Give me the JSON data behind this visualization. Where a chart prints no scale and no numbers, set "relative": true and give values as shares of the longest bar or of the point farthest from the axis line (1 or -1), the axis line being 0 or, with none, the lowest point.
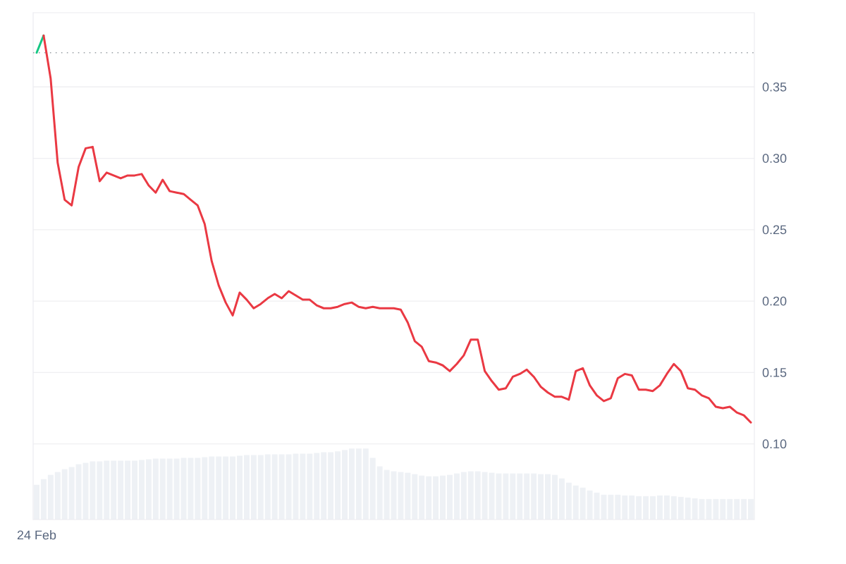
{
  "chart_data": [
    {
      "type": "line",
      "categories": [
        "24 Feb",
        null,
        null,
        null,
        null,
        null,
        null,
        null,
        null,
        null,
        null,
        null,
        null,
        null,
        null,
        null,
        null,
        null,
        null,
        null,
        null,
        null,
        null,
        null,
        null,
        null,
        null,
        null,
        null,
        null,
        null,
        null,
        null,
        null,
        null,
        null,
        null,
        null,
        null,
        null,
        null,
        null,
        null,
        null,
        null,
        null,
        null,
        null,
        null,
        null,
        null,
        null,
        null,
        null,
        null,
        null,
        null,
        null,
        null,
        null,
        null,
        null,
        null,
        null,
        null,
        null,
        null,
        null,
        null,
        null,
        null,
        null,
        null,
        null,
        null,
        null,
        null,
        null,
        null,
        null,
        null,
        null,
        null,
        null,
        null,
        null,
        null,
        null,
        null,
        null,
        null,
        null,
        null,
        null,
        null,
        null,
        null,
        null,
        null,
        null,
        null,
        null,
        null
      ],
      "series": [
        {
          "color": "#16c784",
          "values": [
            0.374,
            0.386,
            null,
            null,
            null,
            null,
            null,
            null,
            null,
            null,
            null,
            null,
            null,
            null,
            null,
            null,
            null,
            null,
            null,
            null,
            null,
            null,
            null,
            null,
            null,
            null,
            null,
            null,
            null,
            null,
            null,
            null,
            null,
            null,
            null,
            null,
            null,
            null,
            null,
            null,
            null,
            null,
            null,
            null,
            null,
            null,
            null,
            null,
            null,
            null,
            null,
            null,
            null,
            null,
            null,
            null,
            null,
            null,
            null,
            null,
            null,
            null,
            null,
            null,
            null,
            null,
            null,
            null,
            null,
            null,
            null,
            null,
            null,
            null,
            null,
            null,
            null,
            null,
            null,
            null,
            null,
            null,
            null,
            null,
            null,
            null,
            null,
            null,
            null,
            null,
            null,
            null,
            null,
            null,
            null,
            null,
            null,
            null,
            null,
            null,
            null,
            null,
            null
          ]
        },
        {
          "color": "#ea3943",
          "values": [
            null,
            0.386,
            0.356,
            0.297,
            0.271,
            0.267,
            0.294,
            0.307,
            0.308,
            0.284,
            0.29,
            0.288,
            0.286,
            0.288,
            0.288,
            0.289,
            0.281,
            0.276,
            0.285,
            0.277,
            0.276,
            0.275,
            0.271,
            0.267,
            0.254,
            0.228,
            0.211,
            0.199,
            0.19,
            0.206,
            0.201,
            0.195,
            0.198,
            0.202,
            0.205,
            0.202,
            0.207,
            0.204,
            0.201,
            0.201,
            0.197,
            0.195,
            0.195,
            0.196,
            0.198,
            0.199,
            0.196,
            0.195,
            0.196,
            0.195,
            0.195,
            0.195,
            0.194,
            0.185,
            0.172,
            0.168,
            0.158,
            0.157,
            0.155,
            0.151,
            0.156,
            0.162,
            0.173,
            0.173,
            0.151,
            0.144,
            0.138,
            0.139,
            0.147,
            0.149,
            0.152,
            0.147,
            0.14,
            0.136,
            0.133,
            0.133,
            0.131,
            0.151,
            0.153,
            0.141,
            0.134,
            0.13,
            0.132,
            0.146,
            0.149,
            0.148,
            0.138,
            0.138,
            0.137,
            0.141,
            0.149,
            0.156,
            0.151,
            0.139,
            0.138,
            0.134,
            0.132,
            0.126,
            0.125,
            0.126,
            0.122,
            0.12,
            0.115
          ]
        }
      ],
      "ylim": [
        0.047,
        0.402
      ],
      "yticks": [
        {
          "value": 0.1,
          "label": "0.10"
        },
        {
          "value": 0.15,
          "label": "0.15"
        },
        {
          "value": 0.2,
          "label": "0.20"
        },
        {
          "value": 0.25,
          "label": "0.25"
        },
        {
          "value": 0.3,
          "label": "0.30"
        },
        {
          "value": 0.35,
          "label": "0.35"
        }
      ],
      "grid": "y",
      "ref_lines": [
        {
          "axis": "y",
          "value": 0.374,
          "line_style": "dotted",
          "color": "#9aa0a6"
        }
      ]
    },
    {
      "type": "bar",
      "relative": true,
      "color": "#eef1f5",
      "categories": [
        null,
        null,
        null,
        null,
        null,
        null,
        null,
        null,
        null,
        null,
        null,
        null,
        null,
        null,
        null,
        null,
        null,
        null,
        null,
        null,
        null,
        null,
        null,
        null,
        null,
        null,
        null,
        null,
        null,
        null,
        null,
        null,
        null,
        null,
        null,
        null,
        null,
        null,
        null,
        null,
        null,
        null,
        null,
        null,
        null,
        null,
        null,
        null,
        null,
        null,
        null,
        null,
        null,
        null,
        null,
        null,
        null,
        null,
        null,
        null,
        null,
        null,
        null,
        null,
        null,
        null,
        null,
        null,
        null,
        null,
        null,
        null,
        null,
        null,
        null,
        null,
        null,
        null,
        null,
        null,
        null,
        null,
        null,
        null,
        null,
        null,
        null,
        null,
        null,
        null,
        null,
        null,
        null,
        null,
        null,
        null,
        null,
        null,
        null,
        null,
        null,
        null,
        null
      ],
      "values": [
        0.49,
        0.57,
        0.63,
        0.67,
        0.71,
        0.74,
        0.78,
        0.8,
        0.82,
        0.82,
        0.83,
        0.83,
        0.83,
        0.83,
        0.83,
        0.84,
        0.85,
        0.86,
        0.86,
        0.86,
        0.86,
        0.87,
        0.87,
        0.87,
        0.88,
        0.89,
        0.89,
        0.89,
        0.89,
        0.9,
        0.91,
        0.91,
        0.91,
        0.92,
        0.92,
        0.92,
        0.92,
        0.93,
        0.93,
        0.93,
        0.94,
        0.95,
        0.95,
        0.96,
        0.98,
        1.0,
        1.0,
        1.0,
        0.87,
        0.75,
        0.7,
        0.68,
        0.67,
        0.66,
        0.64,
        0.62,
        0.61,
        0.61,
        0.62,
        0.63,
        0.65,
        0.67,
        0.68,
        0.68,
        0.67,
        0.66,
        0.65,
        0.65,
        0.65,
        0.65,
        0.65,
        0.65,
        0.64,
        0.64,
        0.63,
        0.58,
        0.52,
        0.48,
        0.45,
        0.41,
        0.38,
        0.35,
        0.35,
        0.35,
        0.34,
        0.34,
        0.33,
        0.33,
        0.33,
        0.34,
        0.34,
        0.33,
        0.32,
        0.31,
        0.3,
        0.29,
        0.29,
        0.29,
        0.29,
        0.29,
        0.29,
        0.29,
        0.29
      ]
    }
  ]
}
